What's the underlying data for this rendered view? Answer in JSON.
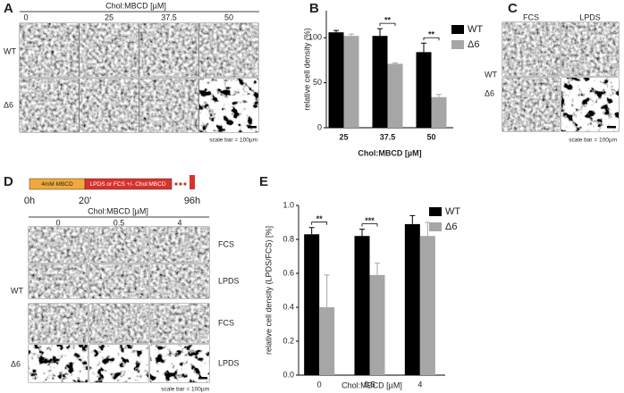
{
  "panel_a": {
    "label": "A",
    "header": "Chol:MBCD [µM]",
    "columns": [
      "0",
      "25",
      "37.5",
      "50"
    ],
    "rows": [
      "WT",
      "Δ6"
    ],
    "scale_bar": "scale bar = 100µm"
  },
  "panel_c": {
    "label": "C",
    "columns": [
      "FCS",
      "LPDS"
    ],
    "rows": [
      "WT",
      "Δ6"
    ],
    "scale_bar": "scale bar = 100µm"
  },
  "panel_d": {
    "label": "D",
    "timeline": [
      "4mM MBCD",
      "LPDS or FCS +/- Chol:MBCD"
    ],
    "time_labels": [
      "0h",
      "20'",
      "96h"
    ],
    "header": "Chol:MBCD [µM]",
    "columns": [
      "0",
      "0.5",
      "4"
    ],
    "groups": [
      "WT",
      "Δ6"
    ],
    "conditions": [
      "FCS",
      "LPDS"
    ],
    "scale_bar": "scale bar = 100µm"
  },
  "chart_data": [
    {
      "type": "bar",
      "label": "B",
      "ylabel": "relative cell density (%)",
      "xlabel": "Chol:MBCD [µM]",
      "categories": [
        "25",
        "37.5",
        "50"
      ],
      "series": [
        {
          "name": "WT",
          "color": "#000000",
          "values": [
            106,
            102,
            84
          ],
          "errors": [
            2,
            8,
            10
          ]
        },
        {
          "name": "Δ6",
          "color": "#a6a6a6",
          "values": [
            102,
            71,
            34
          ],
          "errors": [
            2,
            1,
            3
          ]
        }
      ],
      "ylim": [
        0,
        130
      ],
      "yticks": [
        0,
        50,
        100
      ],
      "annotations": [
        "**",
        "**"
      ],
      "legend": "upper right"
    },
    {
      "type": "bar",
      "label": "E",
      "ylabel": "relative cell density (LPDS/FCS) [%]",
      "xlabel": "Chol:MBCD [µM]",
      "categories": [
        "0",
        "0.5",
        "4"
      ],
      "series": [
        {
          "name": "WT",
          "color": "#000000",
          "values": [
            0.83,
            0.82,
            0.89
          ],
          "errors": [
            0.04,
            0.04,
            0.05
          ]
        },
        {
          "name": "Δ6",
          "color": "#a6a6a6",
          "values": [
            0.4,
            0.59,
            0.82
          ],
          "errors": [
            0.19,
            0.07,
            0.08
          ]
        }
      ],
      "ylim": [
        0,
        1
      ],
      "yticks": [
        {
          "value": 0,
          "label": "0.0"
        },
        0.2,
        0.4,
        0.6,
        0.8,
        {
          "value": 1,
          "label": "1.0"
        }
      ],
      "annotations": [
        "**",
        "***"
      ],
      "legend": "upper right"
    }
  ]
}
